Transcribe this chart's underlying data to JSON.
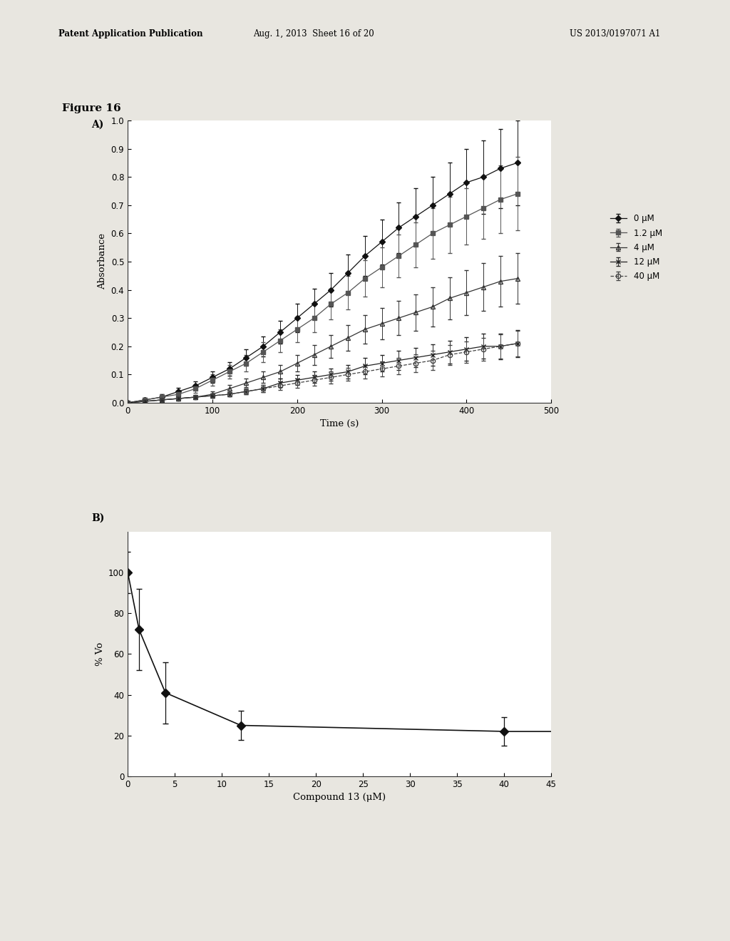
{
  "header_left": "Patent Application Publication",
  "header_mid": "Aug. 1, 2013  Sheet 16 of 20",
  "header_right": "US 2013/0197071 A1",
  "figure_label": "Figure 16",
  "page_bg": "#e8e6e0",
  "plot_bg": "#ffffff",
  "text_color": "#000000",
  "panel_A": {
    "xlabel": "Time (s)",
    "ylabel": "Absorbance",
    "xlim": [
      0,
      500
    ],
    "ylim": [
      0,
      1.05
    ],
    "xticks": [
      0,
      100,
      200,
      300,
      400,
      500
    ],
    "yticks": [
      0,
      0.1,
      0.2,
      0.3,
      0.4,
      0.5,
      0.6,
      0.7,
      0.8,
      0.9,
      1.0
    ],
    "series": [
      {
        "label": "0 μM",
        "marker": "D",
        "color": "#111111",
        "linestyle": "-",
        "fillstyle": "full",
        "x": [
          0,
          20,
          40,
          60,
          80,
          100,
          120,
          140,
          160,
          180,
          200,
          220,
          240,
          260,
          280,
          300,
          320,
          340,
          360,
          380,
          400,
          420,
          440,
          460
        ],
        "y": [
          0.0,
          0.01,
          0.02,
          0.04,
          0.06,
          0.09,
          0.12,
          0.16,
          0.2,
          0.25,
          0.3,
          0.35,
          0.4,
          0.46,
          0.52,
          0.57,
          0.62,
          0.66,
          0.7,
          0.74,
          0.78,
          0.8,
          0.83,
          0.85
        ],
        "yerr": [
          0.005,
          0.007,
          0.01,
          0.012,
          0.015,
          0.02,
          0.025,
          0.03,
          0.035,
          0.04,
          0.05,
          0.055,
          0.06,
          0.065,
          0.07,
          0.08,
          0.09,
          0.1,
          0.1,
          0.11,
          0.12,
          0.13,
          0.14,
          0.15
        ]
      },
      {
        "label": "1.2 μM",
        "marker": "s",
        "color": "#555555",
        "linestyle": "-",
        "fillstyle": "full",
        "x": [
          0,
          20,
          40,
          60,
          80,
          100,
          120,
          140,
          160,
          180,
          200,
          220,
          240,
          260,
          280,
          300,
          320,
          340,
          360,
          380,
          400,
          420,
          440,
          460
        ],
        "y": [
          0.0,
          0.01,
          0.02,
          0.03,
          0.05,
          0.08,
          0.11,
          0.14,
          0.18,
          0.22,
          0.26,
          0.3,
          0.35,
          0.39,
          0.44,
          0.48,
          0.52,
          0.56,
          0.6,
          0.63,
          0.66,
          0.69,
          0.72,
          0.74
        ],
        "yerr": [
          0.005,
          0.007,
          0.01,
          0.012,
          0.015,
          0.02,
          0.025,
          0.03,
          0.035,
          0.04,
          0.045,
          0.05,
          0.055,
          0.06,
          0.065,
          0.07,
          0.075,
          0.08,
          0.09,
          0.1,
          0.1,
          0.11,
          0.12,
          0.13
        ]
      },
      {
        "label": "4 μM",
        "marker": "^",
        "color": "#333333",
        "linestyle": "-",
        "fillstyle": "none",
        "x": [
          0,
          20,
          40,
          60,
          80,
          100,
          120,
          140,
          160,
          180,
          200,
          220,
          240,
          260,
          280,
          300,
          320,
          340,
          360,
          380,
          400,
          420,
          440,
          460
        ],
        "y": [
          0.0,
          0.005,
          0.01,
          0.015,
          0.02,
          0.03,
          0.05,
          0.07,
          0.09,
          0.11,
          0.14,
          0.17,
          0.2,
          0.23,
          0.26,
          0.28,
          0.3,
          0.32,
          0.34,
          0.37,
          0.39,
          0.41,
          0.43,
          0.44
        ],
        "yerr": [
          0.003,
          0.005,
          0.005,
          0.007,
          0.008,
          0.01,
          0.012,
          0.015,
          0.02,
          0.025,
          0.03,
          0.035,
          0.04,
          0.045,
          0.05,
          0.055,
          0.06,
          0.065,
          0.07,
          0.075,
          0.08,
          0.085,
          0.09,
          0.09
        ]
      },
      {
        "label": "12 μM",
        "marker": "x",
        "color": "#222222",
        "linestyle": "-",
        "fillstyle": "full",
        "x": [
          0,
          20,
          40,
          60,
          80,
          100,
          120,
          140,
          160,
          180,
          200,
          220,
          240,
          260,
          280,
          300,
          320,
          340,
          360,
          380,
          400,
          420,
          440,
          460
        ],
        "y": [
          0.0,
          0.005,
          0.01,
          0.015,
          0.02,
          0.025,
          0.03,
          0.04,
          0.05,
          0.07,
          0.08,
          0.09,
          0.1,
          0.11,
          0.13,
          0.14,
          0.15,
          0.16,
          0.17,
          0.18,
          0.19,
          0.2,
          0.2,
          0.21
        ],
        "yerr": [
          0.002,
          0.003,
          0.005,
          0.005,
          0.006,
          0.007,
          0.008,
          0.01,
          0.012,
          0.015,
          0.018,
          0.02,
          0.022,
          0.025,
          0.028,
          0.03,
          0.033,
          0.035,
          0.038,
          0.04,
          0.042,
          0.044,
          0.046,
          0.048
        ]
      },
      {
        "label": "40 μM",
        "marker": "o",
        "color": "#444444",
        "linestyle": "--",
        "fillstyle": "none",
        "x": [
          0,
          20,
          40,
          60,
          80,
          100,
          120,
          140,
          160,
          180,
          200,
          220,
          240,
          260,
          280,
          300,
          320,
          340,
          360,
          380,
          400,
          420,
          440,
          460
        ],
        "y": [
          0.0,
          0.005,
          0.01,
          0.015,
          0.02,
          0.025,
          0.03,
          0.04,
          0.05,
          0.06,
          0.07,
          0.08,
          0.09,
          0.1,
          0.11,
          0.12,
          0.13,
          0.14,
          0.15,
          0.17,
          0.18,
          0.19,
          0.2,
          0.21
        ],
        "yerr": [
          0.002,
          0.003,
          0.004,
          0.005,
          0.006,
          0.007,
          0.008,
          0.01,
          0.012,
          0.015,
          0.017,
          0.019,
          0.021,
          0.023,
          0.025,
          0.027,
          0.029,
          0.031,
          0.033,
          0.035,
          0.038,
          0.04,
          0.043,
          0.046
        ]
      }
    ]
  },
  "panel_B": {
    "xlabel": "Compound 13 (μM)",
    "ylabel": "% Vo",
    "xlim": [
      0,
      45
    ],
    "ylim": [
      0,
      120
    ],
    "xticks": [
      0,
      5,
      10,
      15,
      20,
      25,
      30,
      35,
      40,
      45
    ],
    "yticks": [
      0,
      20,
      40,
      60,
      80,
      100
    ],
    "x": [
      0,
      1.2,
      4,
      12,
      40
    ],
    "y": [
      100,
      72,
      41,
      25,
      22
    ],
    "yerr": [
      10,
      20,
      15,
      7,
      7
    ],
    "color": "#111111",
    "marker": "D",
    "linestyle": "-"
  }
}
